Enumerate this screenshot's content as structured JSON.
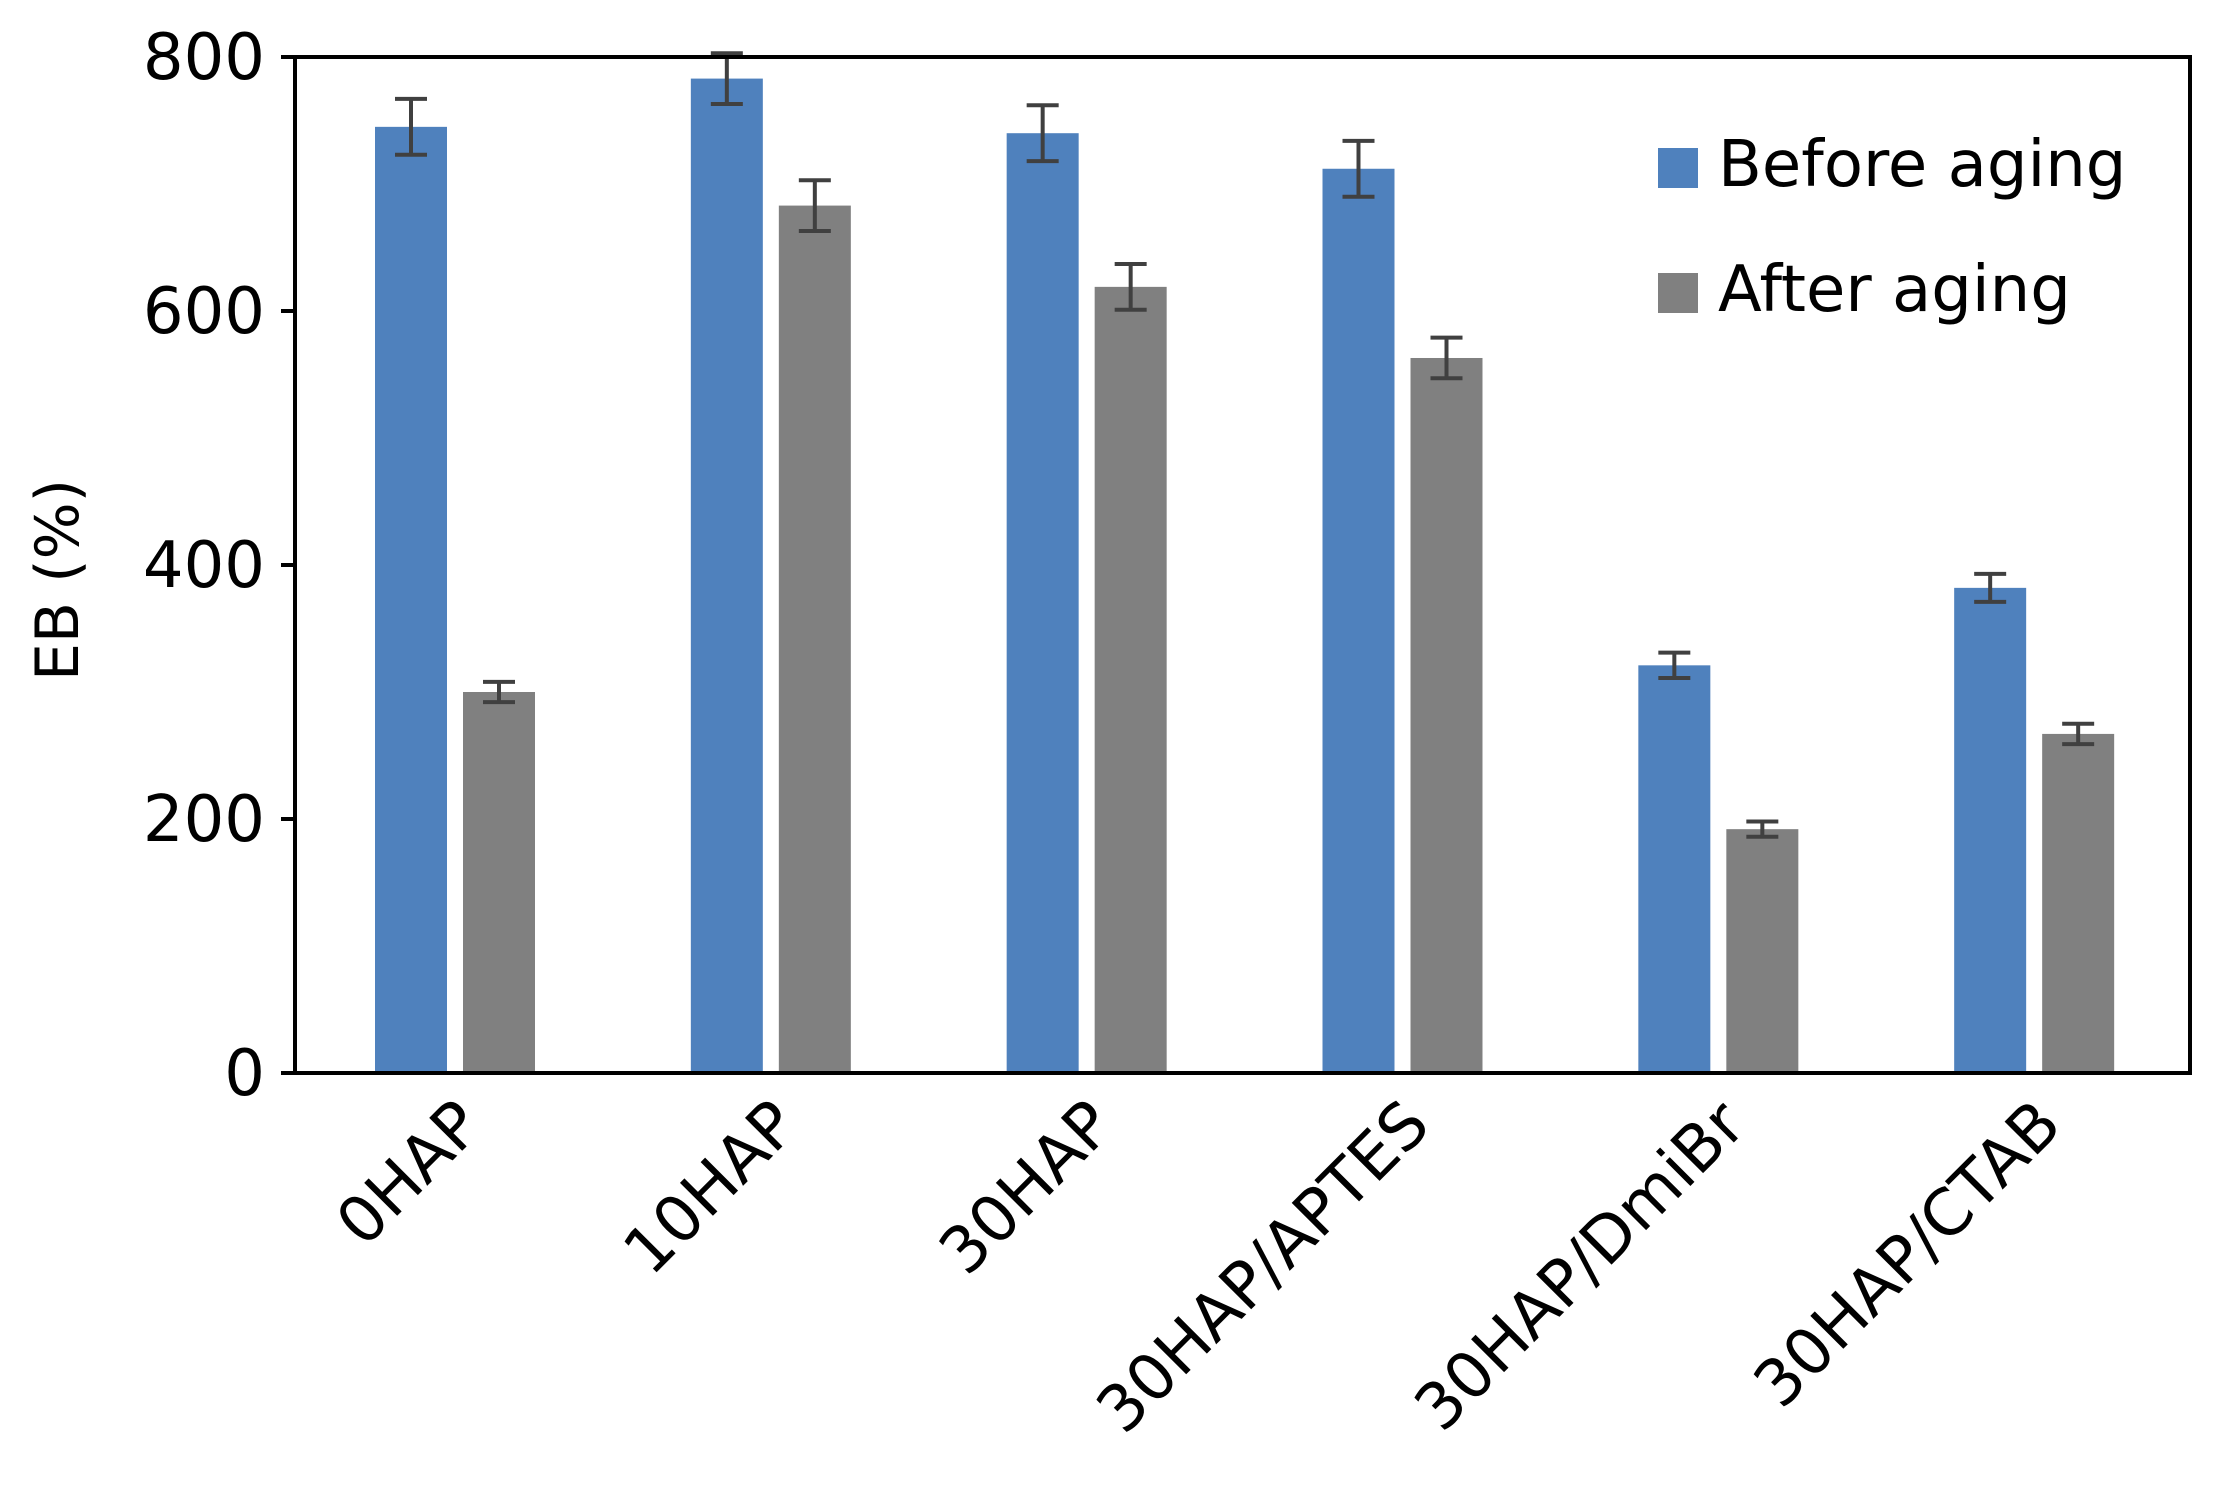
{
  "chart_data": {
    "type": "bar",
    "title": "",
    "xlabel": "",
    "ylabel": "EB (%)",
    "ylim": [
      0,
      800
    ],
    "yticks": [
      0,
      200,
      400,
      600,
      800
    ],
    "categories": [
      "0HAP",
      "10HAP",
      "30HAP",
      "30HAP/APTES",
      "30HAP/DmiBr",
      "30HAP/CTAB"
    ],
    "series": [
      {
        "name": "Before aging",
        "color": "#4f81bd",
        "values": [
          745,
          783,
          740,
          712,
          321,
          382
        ],
        "errors": [
          22,
          20,
          22,
          22,
          10,
          11
        ]
      },
      {
        "name": "After aging",
        "color": "#808080",
        "values": [
          300,
          683,
          619,
          563,
          192,
          267
        ],
        "errors": [
          8,
          20,
          18,
          16,
          6,
          8
        ]
      }
    ],
    "error_bar_color": "#404040",
    "grid": false,
    "legend_position": "top-right"
  }
}
